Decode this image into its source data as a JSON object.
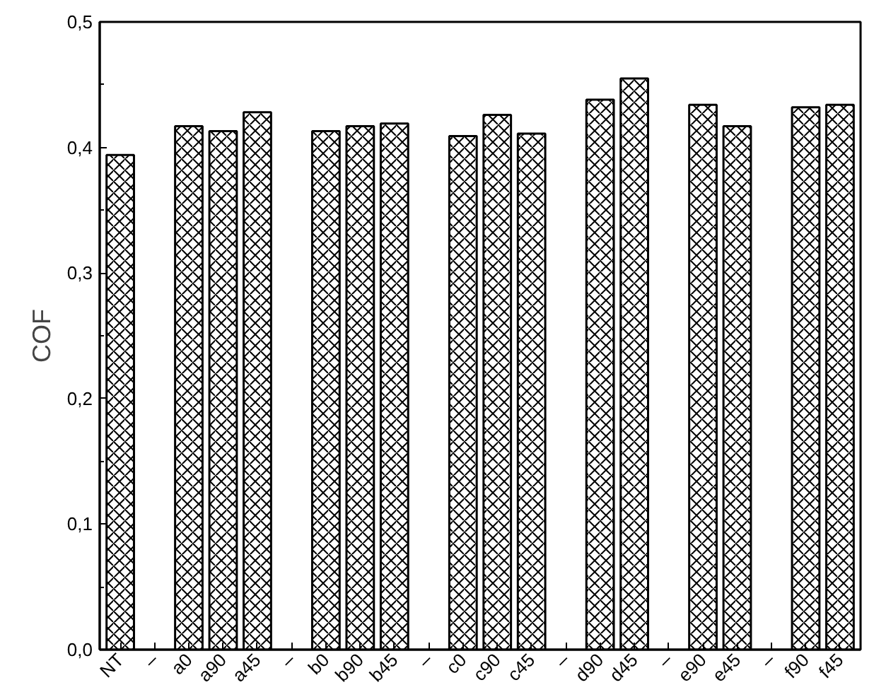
{
  "chart_data": {
    "type": "bar",
    "ylabel": "COF",
    "categories": [
      "NT",
      "–",
      "a0",
      "a90",
      "a45",
      "–",
      "b0",
      "b90",
      "b45",
      "–",
      "c0",
      "c90",
      "c45",
      "–",
      "d90",
      "d45",
      "–",
      "e90",
      "e45",
      "–",
      "f90",
      "f45"
    ],
    "values": [
      0.394,
      null,
      0.417,
      0.413,
      0.428,
      null,
      0.413,
      0.417,
      0.419,
      null,
      0.409,
      0.426,
      0.411,
      null,
      0.438,
      0.455,
      null,
      0.434,
      0.417,
      null,
      0.432,
      0.434
    ],
    "color": "#ffffff",
    "ylim": [
      0,
      0.5
    ],
    "yticks": [
      {
        "value": 0,
        "label": "0,0"
      },
      {
        "value": 0.1,
        "label": "0,1"
      },
      {
        "value": 0.2,
        "label": "0,2"
      },
      {
        "value": 0.3,
        "label": "0,3"
      },
      {
        "value": 0.4,
        "label": "0,4"
      },
      {
        "value": 0.5,
        "label": "0,5"
      }
    ],
    "grid": false
  }
}
